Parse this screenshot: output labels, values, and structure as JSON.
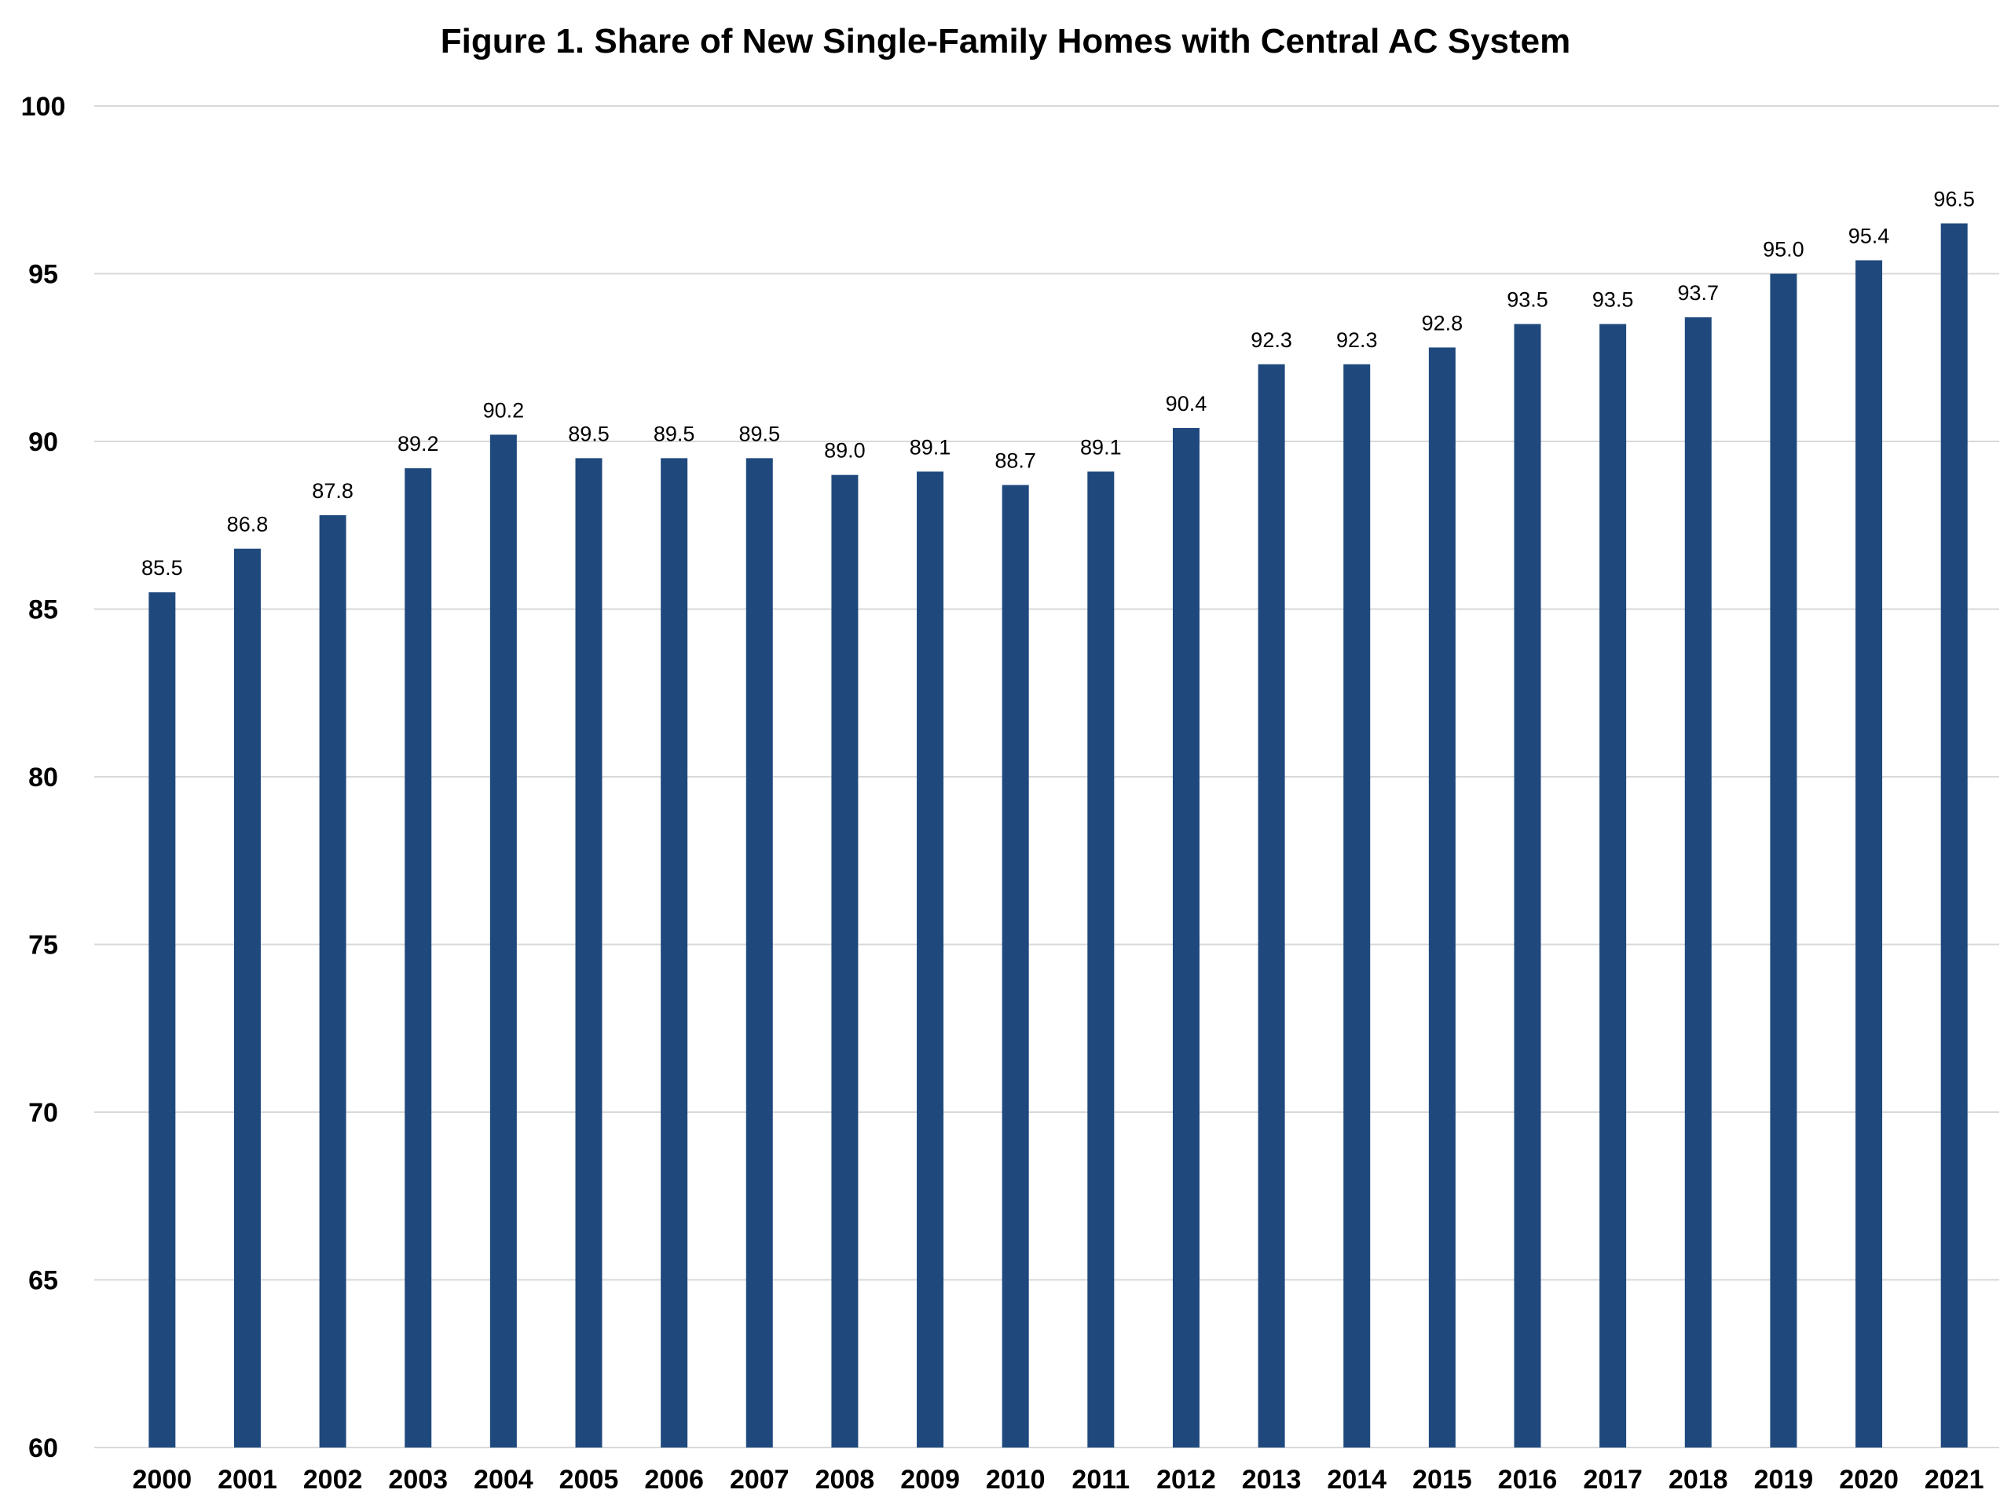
{
  "chart_data": {
    "type": "bar",
    "title": "Figure 1. Share of New Single-Family Homes with Central AC System",
    "xlabel": "",
    "ylabel": "",
    "categories": [
      "2000",
      "2001",
      "2002",
      "2003",
      "2004",
      "2005",
      "2006",
      "2007",
      "2008",
      "2009",
      "2010",
      "2011",
      "2012",
      "2013",
      "2014",
      "2015",
      "2016",
      "2017",
      "2018",
      "2019",
      "2020",
      "2021"
    ],
    "values": [
      85.5,
      86.8,
      87.8,
      89.2,
      90.2,
      89.5,
      89.5,
      89.5,
      89.0,
      89.1,
      88.7,
      89.1,
      90.4,
      92.3,
      92.3,
      92.8,
      93.5,
      93.5,
      93.7,
      95.0,
      95.4,
      96.5
    ],
    "value_labels": [
      "85.5",
      "86.8",
      "87.8",
      "89.2",
      "90.2",
      "89.5",
      "89.5",
      "89.5",
      "89.0",
      "89.1",
      "88.7",
      "89.1",
      "90.4",
      "92.3",
      "92.3",
      "92.8",
      "93.5",
      "93.5",
      "93.7",
      "95.0",
      "95.4",
      "96.5"
    ],
    "ylim": [
      60,
      100
    ],
    "yticks": [
      "60",
      "65",
      "70",
      "75",
      "80",
      "85",
      "90",
      "95",
      "100"
    ],
    "grid": true,
    "legend": "none",
    "bar_color": "#1f497d"
  }
}
